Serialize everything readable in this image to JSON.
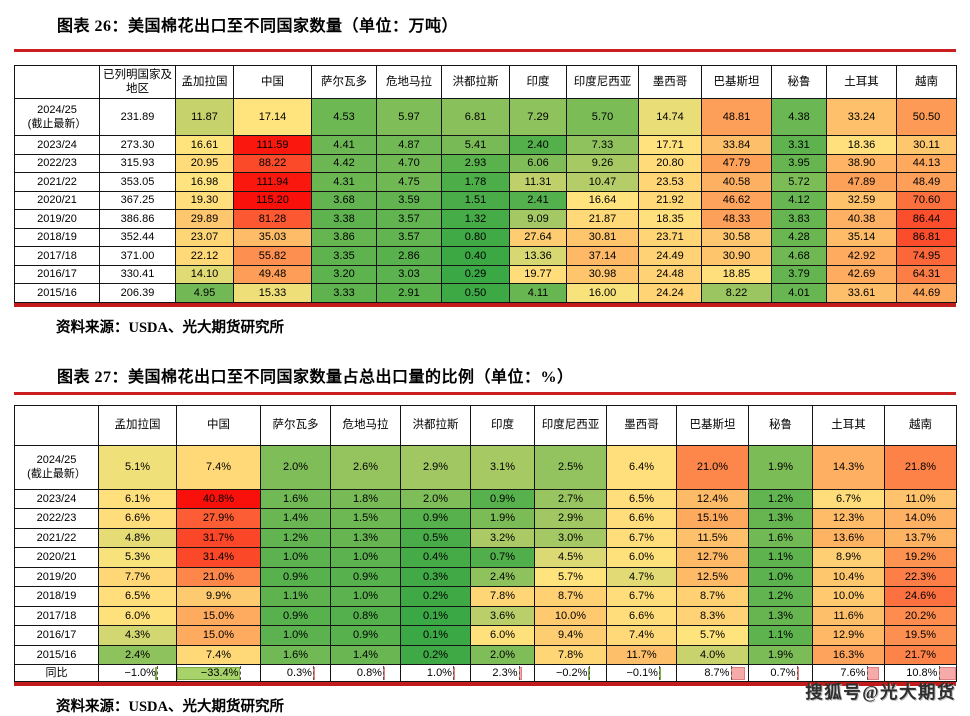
{
  "page": {
    "watermark": "搜狐号@光大期货",
    "accent_rule_color": "#cb1f1f"
  },
  "heat_scale": {
    "low": "#3aa844",
    "mid": "#ffe47e",
    "high": "#fa100a"
  },
  "yoy_bars": {
    "positive_fill": "#f6abab",
    "positive_border": "#e07f7f",
    "negative_fill": "#a8d36b",
    "negative_border": "#7fae47"
  },
  "figure26": {
    "title": "图表 26：美国棉花出口至不同国家数量（单位：万吨）",
    "source": "资料来源：USDA、光大期货研究所",
    "columns": [
      "",
      "已列明国家及地区",
      "孟加拉国",
      "中国",
      "萨尔瓦多",
      "危地马拉",
      "洪都拉斯",
      "印度",
      "印度尼西亚",
      "墨西哥",
      "巴基斯坦",
      "秘鲁",
      "土耳其",
      "越南"
    ],
    "rows": [
      {
        "label": "2024/25\n(截止最新）",
        "total": "231.89",
        "values": [
          "11.87",
          "17.14",
          "4.53",
          "5.97",
          "6.81",
          "7.29",
          "5.70",
          "14.74",
          "48.81",
          "4.38",
          "33.24",
          "50.50"
        ]
      },
      {
        "label": "2023/24",
        "total": "273.30",
        "values": [
          "16.61",
          "111.59",
          "4.41",
          "4.87",
          "5.41",
          "2.40",
          "7.33",
          "17.71",
          "33.84",
          "3.31",
          "18.36",
          "30.11"
        ]
      },
      {
        "label": "2022/23",
        "total": "315.93",
        "values": [
          "20.95",
          "88.22",
          "4.42",
          "4.70",
          "2.93",
          "6.06",
          "9.26",
          "20.80",
          "47.79",
          "3.95",
          "38.90",
          "44.13"
        ]
      },
      {
        "label": "2021/22",
        "total": "353.05",
        "values": [
          "16.98",
          "111.94",
          "4.31",
          "4.75",
          "1.78",
          "11.31",
          "10.47",
          "23.53",
          "40.58",
          "5.72",
          "47.89",
          "48.49"
        ]
      },
      {
        "label": "2020/21",
        "total": "367.25",
        "values": [
          "19.30",
          "115.20",
          "3.68",
          "3.59",
          "1.51",
          "2.41",
          "16.64",
          "21.92",
          "46.62",
          "4.12",
          "32.59",
          "70.60"
        ]
      },
      {
        "label": "2019/20",
        "total": "386.86",
        "values": [
          "29.89",
          "81.28",
          "3.38",
          "3.57",
          "1.32",
          "9.09",
          "21.87",
          "18.35",
          "48.33",
          "3.83",
          "40.38",
          "86.44"
        ]
      },
      {
        "label": "2018/19",
        "total": "352.44",
        "values": [
          "23.07",
          "35.03",
          "3.86",
          "3.57",
          "0.80",
          "27.64",
          "30.81",
          "23.71",
          "30.58",
          "4.28",
          "35.14",
          "86.81"
        ]
      },
      {
        "label": "2017/18",
        "total": "371.00",
        "values": [
          "22.12",
          "55.82",
          "3.35",
          "2.86",
          "0.40",
          "13.36",
          "37.14",
          "24.49",
          "30.90",
          "4.68",
          "42.92",
          "74.95"
        ]
      },
      {
        "label": "2016/17",
        "total": "330.41",
        "values": [
          "14.10",
          "49.48",
          "3.20",
          "3.03",
          "0.29",
          "19.77",
          "30.98",
          "24.48",
          "18.85",
          "3.79",
          "42.69",
          "64.31"
        ]
      },
      {
        "label": "2015/16",
        "total": "206.39",
        "values": [
          "4.95",
          "15.33",
          "3.33",
          "2.91",
          "0.50",
          "4.11",
          "16.00",
          "24.24",
          "8.22",
          "4.01",
          "33.61",
          "44.69"
        ]
      }
    ]
  },
  "figure27": {
    "title": "图表 27：美国棉花出口至不同国家数量占总出口量的比例（单位：%）",
    "source": "资料来源：USDA、光大期货研究所",
    "columns": [
      "",
      "孟加拉国",
      "中国",
      "萨尔瓦多",
      "危地马拉",
      "洪都拉斯",
      "印度",
      "印度尼西亚",
      "墨西哥",
      "巴基斯坦",
      "秘鲁",
      "土耳其",
      "越南"
    ],
    "rows": [
      {
        "label": "2024/25\n(截止最新）",
        "values": [
          "5.1%",
          "7.4%",
          "2.0%",
          "2.6%",
          "2.9%",
          "3.1%",
          "2.5%",
          "6.4%",
          "21.0%",
          "1.9%",
          "14.3%",
          "21.8%"
        ]
      },
      {
        "label": "2023/24",
        "values": [
          "6.1%",
          "40.8%",
          "1.6%",
          "1.8%",
          "2.0%",
          "0.9%",
          "2.7%",
          "6.5%",
          "12.4%",
          "1.2%",
          "6.7%",
          "11.0%"
        ]
      },
      {
        "label": "2022/23",
        "values": [
          "6.6%",
          "27.9%",
          "1.4%",
          "1.5%",
          "0.9%",
          "1.9%",
          "2.9%",
          "6.6%",
          "15.1%",
          "1.3%",
          "12.3%",
          "14.0%"
        ]
      },
      {
        "label": "2021/22",
        "values": [
          "4.8%",
          "31.7%",
          "1.2%",
          "1.3%",
          "0.5%",
          "3.2%",
          "3.0%",
          "6.7%",
          "11.5%",
          "1.6%",
          "13.6%",
          "13.7%"
        ]
      },
      {
        "label": "2020/21",
        "values": [
          "5.3%",
          "31.4%",
          "1.0%",
          "1.0%",
          "0.4%",
          "0.7%",
          "4.5%",
          "6.0%",
          "12.7%",
          "1.1%",
          "8.9%",
          "19.2%"
        ]
      },
      {
        "label": "2019/20",
        "values": [
          "7.7%",
          "21.0%",
          "0.9%",
          "0.9%",
          "0.3%",
          "2.4%",
          "5.7%",
          "4.7%",
          "12.5%",
          "1.0%",
          "10.4%",
          "22.3%"
        ]
      },
      {
        "label": "2018/19",
        "values": [
          "6.5%",
          "9.9%",
          "1.1%",
          "1.0%",
          "0.2%",
          "7.8%",
          "8.7%",
          "6.7%",
          "8.7%",
          "1.2%",
          "10.0%",
          "24.6%"
        ]
      },
      {
        "label": "2017/18",
        "values": [
          "6.0%",
          "15.0%",
          "0.9%",
          "0.8%",
          "0.1%",
          "3.6%",
          "10.0%",
          "6.6%",
          "8.3%",
          "1.3%",
          "11.6%",
          "20.2%"
        ]
      },
      {
        "label": "2016/17",
        "values": [
          "4.3%",
          "15.0%",
          "1.0%",
          "0.9%",
          "0.1%",
          "6.0%",
          "9.4%",
          "7.4%",
          "5.7%",
          "1.1%",
          "12.9%",
          "19.5%"
        ]
      },
      {
        "label": "2015/16",
        "values": [
          "2.4%",
          "7.4%",
          "1.6%",
          "1.4%",
          "0.2%",
          "2.0%",
          "7.8%",
          "11.7%",
          "4.0%",
          "1.9%",
          "16.3%",
          "21.7%"
        ]
      }
    ],
    "yoy": {
      "label": "同比",
      "values": [
        "−1.0%",
        "−33.4%",
        "0.3%",
        "0.8%",
        "1.0%",
        "2.3%",
        "−0.2%",
        "−0.1%",
        "8.7%",
        "0.7%",
        "7.6%",
        "10.8%"
      ]
    }
  }
}
